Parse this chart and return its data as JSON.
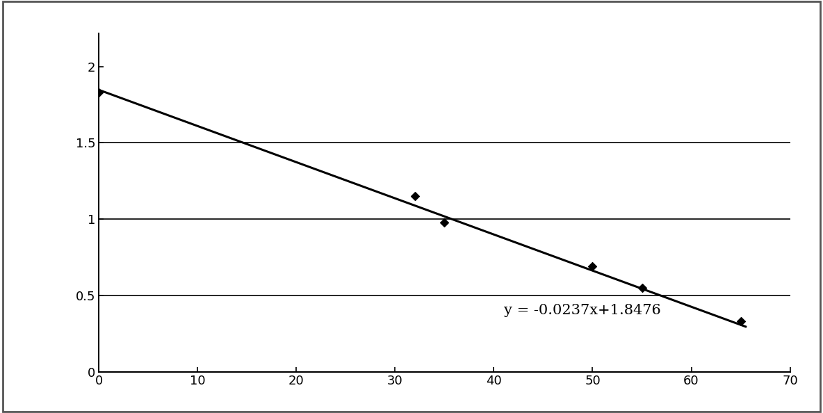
{
  "scatter_x": [
    0,
    32,
    35,
    50,
    55,
    65
  ],
  "scatter_y": [
    1.83,
    1.15,
    0.98,
    0.69,
    0.55,
    0.33
  ],
  "line_slope": -0.0237,
  "line_intercept": 1.8476,
  "line_x_start": 0,
  "line_x_end": 65.5,
  "equation_text": "y = -0.0237x+1.8476",
  "equation_x": 41,
  "equation_y": 0.4,
  "xlim": [
    0,
    70
  ],
  "ylim": [
    0,
    2.0
  ],
  "ylim_top_extra": 0.22,
  "xticks": [
    0,
    10,
    20,
    30,
    40,
    50,
    60,
    70
  ],
  "yticks": [
    0,
    0.5,
    1.0,
    1.5,
    2.0
  ],
  "hlines": [
    0.5,
    1.0,
    1.5
  ],
  "background_color": "#ffffff",
  "line_color": "#000000",
  "scatter_color": "#000000",
  "marker": "D",
  "marker_size": 6,
  "equation_fontsize": 15,
  "tick_fontsize": 13,
  "border_color": "#000000",
  "figure_bg": "#f0f0f0"
}
